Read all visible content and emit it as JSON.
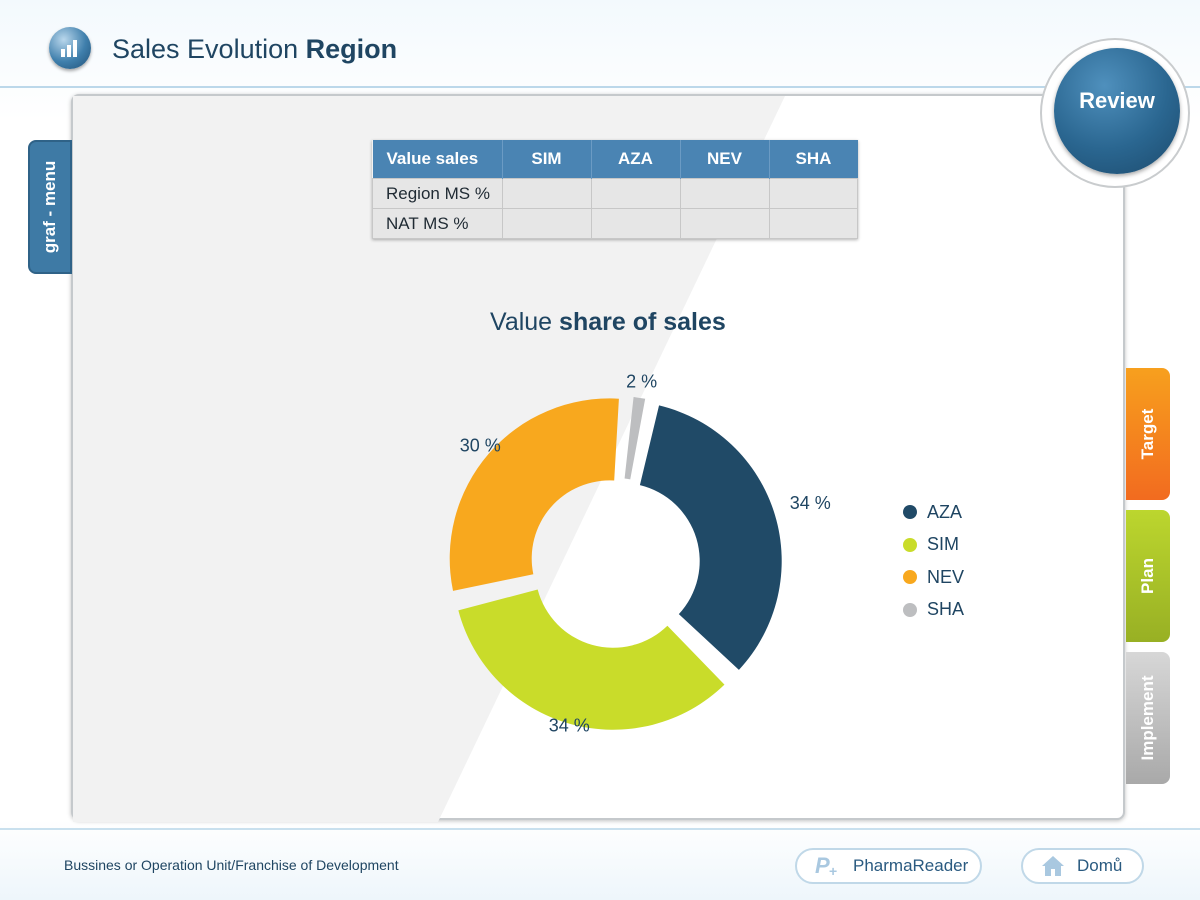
{
  "header": {
    "title_regular": "Sales Evolution",
    "title_bold": "Region"
  },
  "review_label": "Review",
  "left_tab_label": "graf - menu",
  "right_tabs": [
    {
      "label": "Target",
      "color": "#f47c20"
    },
    {
      "label": "Plan",
      "color": "#a9c229"
    },
    {
      "label": "Implement",
      "color": "#b5b5b5"
    }
  ],
  "table": {
    "columns": [
      "Value sales",
      "SIM",
      "AZA",
      "NEV",
      "SHA"
    ],
    "rows": [
      {
        "label": "Region MS %",
        "cells": [
          "",
          "",
          "",
          ""
        ]
      },
      {
        "label": "NAT MS %",
        "cells": [
          "",
          "",
          "",
          ""
        ]
      }
    ]
  },
  "chart_title": {
    "regular": "Value",
    "bold": "share of sales"
  },
  "chart_data": {
    "type": "pie",
    "subtype": "donut",
    "title": "Value share of sales",
    "slices": [
      {
        "name": "AZA",
        "value": 34,
        "label": "34 %",
        "color": "#204a67"
      },
      {
        "name": "SIM",
        "value": 34,
        "label": "34 %",
        "color": "#c9dc2a"
      },
      {
        "name": "NEV",
        "value": 30,
        "label": "30 %",
        "color": "#f8a81e"
      },
      {
        "name": "SHA",
        "value": 2,
        "label": "2 %",
        "color": "#bdbec0"
      }
    ],
    "legend": [
      "AZA",
      "SIM",
      "NEV",
      "SHA"
    ],
    "legend_position": "right"
  },
  "footer": {
    "text": "Bussines or Operation Unit/Franchise of Development",
    "pharmareader_label": "PharmaReader",
    "home_label": "Domů"
  }
}
